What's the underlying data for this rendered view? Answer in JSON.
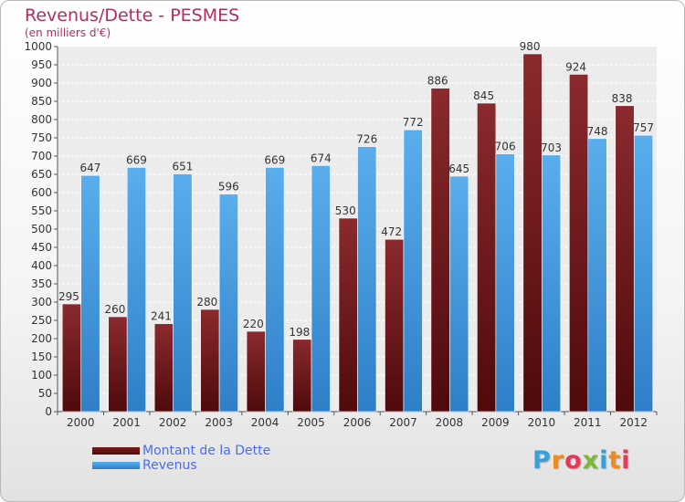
{
  "header": {
    "title": "Revenus/Dette - PESMES",
    "subtitle": "(en milliers d'€)"
  },
  "chart_data": {
    "type": "bar",
    "title": "Revenus/Dette - PESMES",
    "subtitle": "(en milliers d'€)",
    "categories": [
      "2000",
      "2001",
      "2002",
      "2003",
      "2004",
      "2005",
      "2006",
      "2007",
      "2008",
      "2009",
      "2010",
      "2011",
      "2012"
    ],
    "series": [
      {
        "name": "Montant de la Dette",
        "color": "#7a1c20",
        "values": [
          295,
          260,
          241,
          280,
          220,
          198,
          530,
          472,
          886,
          845,
          980,
          924,
          838
        ]
      },
      {
        "name": "Revenus",
        "color": "#4ca2e6",
        "values": [
          647,
          669,
          651,
          596,
          669,
          674,
          726,
          772,
          645,
          706,
          703,
          748,
          757
        ]
      }
    ],
    "ylim": [
      0,
      1000
    ],
    "ytick_step": 50,
    "grid": true,
    "legend_position": "bottom-left"
  },
  "logo": {
    "letters": [
      "P",
      "r",
      "o",
      "x",
      "i",
      "t",
      "i"
    ],
    "colors": [
      "#3aa0d8",
      "#f08a1c",
      "#e23b5a",
      "#7bb934",
      "#3aa0d8",
      "#f08a1c",
      "#e23b5a"
    ]
  }
}
